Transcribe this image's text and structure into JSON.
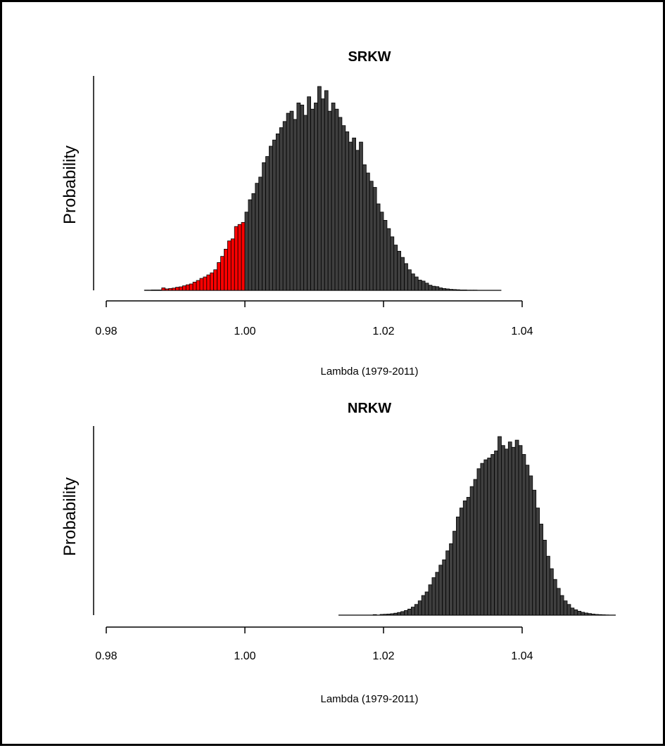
{
  "chart_data": [
    {
      "type": "bar",
      "title": "SRKW",
      "xlabel": "Lambda (1979-2011)",
      "ylabel": "Probability",
      "xlim": [
        0.98,
        1.04
      ],
      "xticks": [
        "0.98",
        "1.00",
        "1.02",
        "1.04"
      ],
      "bin_width": 0.0005,
      "bins_start": 0.9855,
      "highlight_below": 1.0,
      "colors": {
        "bar": "#3f3f3f",
        "highlight": "#ff0000",
        "edge": "#000000"
      },
      "density": [
        0.001,
        0.001,
        0.002,
        0.002,
        0.002,
        0.012,
        0.007,
        0.009,
        0.011,
        0.015,
        0.017,
        0.022,
        0.027,
        0.031,
        0.04,
        0.048,
        0.058,
        0.065,
        0.075,
        0.085,
        0.1,
        0.135,
        0.165,
        0.2,
        0.24,
        0.25,
        0.31,
        0.32,
        0.33,
        0.38,
        0.44,
        0.47,
        0.52,
        0.55,
        0.62,
        0.65,
        0.7,
        0.73,
        0.76,
        0.79,
        0.82,
        0.86,
        0.87,
        0.83,
        0.91,
        0.9,
        0.85,
        0.94,
        0.88,
        0.91,
        0.99,
        0.93,
        0.97,
        0.87,
        0.91,
        0.88,
        0.84,
        0.8,
        0.77,
        0.72,
        0.74,
        0.68,
        0.72,
        0.61,
        0.57,
        0.53,
        0.5,
        0.42,
        0.38,
        0.34,
        0.3,
        0.26,
        0.22,
        0.19,
        0.16,
        0.13,
        0.1,
        0.08,
        0.065,
        0.05,
        0.045,
        0.035,
        0.025,
        0.02,
        0.018,
        0.012,
        0.009,
        0.007,
        0.005,
        0.004,
        0.003,
        0.002,
        0.002,
        0.001,
        0.001,
        0.001,
        0.0,
        0.0,
        0.0,
        0.0,
        0.0,
        0.0,
        0.0
      ]
    },
    {
      "type": "bar",
      "title": "NRKW",
      "xlabel": "Lambda (1979-2011)",
      "ylabel": "Probability",
      "xlim": [
        0.98,
        1.04
      ],
      "xticks": [
        "0.98",
        "1.00",
        "1.02",
        "1.04"
      ],
      "bin_width": 0.0005,
      "bins_start": 1.0135,
      "highlight_below": null,
      "colors": {
        "bar": "#3f3f3f",
        "highlight": "#ff0000",
        "edge": "#000000"
      },
      "density": [
        0.0,
        0.0,
        0.0,
        0.0,
        0.0,
        0.0,
        0.0,
        0.0,
        0.0,
        0.0,
        0.003,
        0.0,
        0.004,
        0.005,
        0.006,
        0.008,
        0.011,
        0.015,
        0.02,
        0.026,
        0.034,
        0.045,
        0.06,
        0.08,
        0.11,
        0.13,
        0.17,
        0.21,
        0.24,
        0.28,
        0.31,
        0.36,
        0.4,
        0.47,
        0.55,
        0.6,
        0.64,
        0.66,
        0.72,
        0.76,
        0.82,
        0.85,
        0.87,
        0.88,
        0.9,
        0.92,
        1.0,
        0.95,
        0.93,
        0.97,
        0.94,
        0.98,
        0.95,
        0.9,
        0.84,
        0.78,
        0.7,
        0.6,
        0.51,
        0.42,
        0.33,
        0.26,
        0.2,
        0.15,
        0.11,
        0.08,
        0.06,
        0.04,
        0.03,
        0.022,
        0.016,
        0.012,
        0.009,
        0.006,
        0.004,
        0.003,
        0.002,
        0.001,
        0.0,
        0.0
      ]
    }
  ]
}
